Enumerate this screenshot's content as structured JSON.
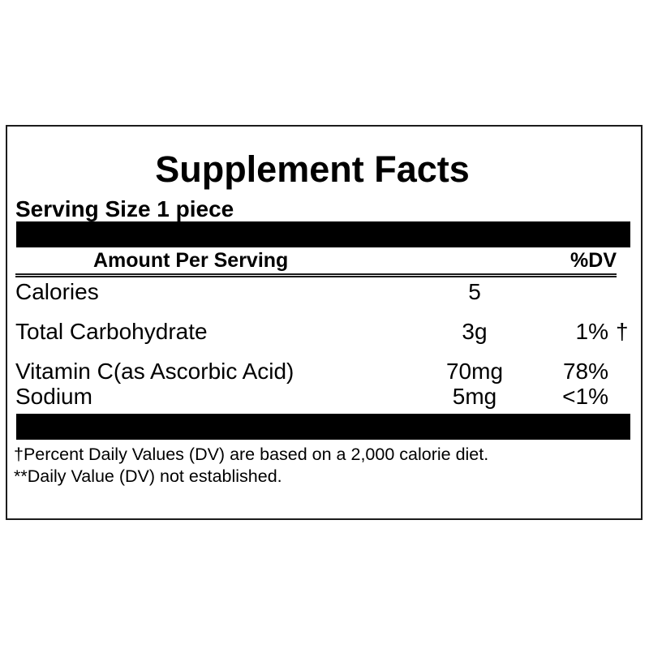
{
  "label": {
    "title": "Supplement Facts",
    "serving_size": "Serving Size 1 piece",
    "header": {
      "amount": "Amount Per Serving",
      "dv": "%DV"
    },
    "rows": [
      {
        "name": "Calories",
        "amount": "5",
        "dv": "",
        "note": ""
      },
      {
        "name": "Total Carbohydrate",
        "amount": "3g",
        "dv": "1%",
        "note": "†"
      },
      {
        "name": "Vitamin C(as Ascorbic Acid)",
        "amount": "70mg",
        "dv": "78%",
        "note": ""
      },
      {
        "name": "Sodium",
        "amount": "5mg",
        "dv": "<1%",
        "note": ""
      }
    ],
    "footnotes": [
      "†Percent Daily Values (DV) are based on a 2,000 calorie diet.",
      "**Daily Value (DV) not established."
    ],
    "colors": {
      "text": "#000000",
      "bar": "#000000",
      "border": "#1c1c1c",
      "rule": "#1a1a1a",
      "background": "#ffffff"
    }
  }
}
